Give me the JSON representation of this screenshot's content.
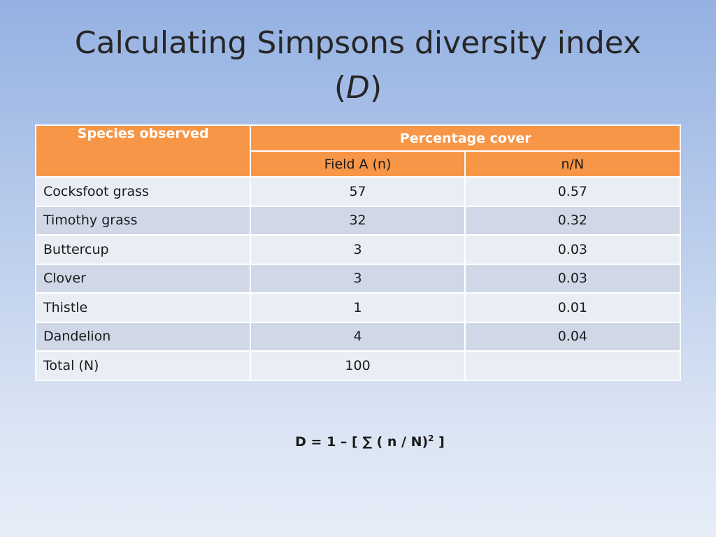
{
  "title": {
    "main": "Calculating Simpsons diversity index",
    "paren_open": "(",
    "italic": "D",
    "paren_close": ")"
  },
  "table": {
    "header_species": "Species observed",
    "header_percentage": "Percentage cover",
    "sub_field": "Field A (n)",
    "sub_ratio": "n/N",
    "rows": [
      {
        "species": "Cocksfoot grass",
        "n": "57",
        "ratio": "0.57"
      },
      {
        "species": "Timothy grass",
        "n": "32",
        "ratio": "0.32"
      },
      {
        "species": "Buttercup",
        "n": "3",
        "ratio": "0.03"
      },
      {
        "species": "Clover",
        "n": "3",
        "ratio": "0.03"
      },
      {
        "species": "Thistle",
        "n": "1",
        "ratio": "0.01"
      },
      {
        "species": "Dandelion",
        "n": "4",
        "ratio": "0.04"
      },
      {
        "species": "Total (N)",
        "n": "100",
        "ratio": ""
      }
    ]
  },
  "formula": {
    "text": "D = 1 – [ ∑ ( n / N)",
    "exponent": "2",
    "close": " ]"
  },
  "colors": {
    "header_orange": "#f79646",
    "row_light": "#e9edf4",
    "row_dark": "#d0d8e8"
  }
}
